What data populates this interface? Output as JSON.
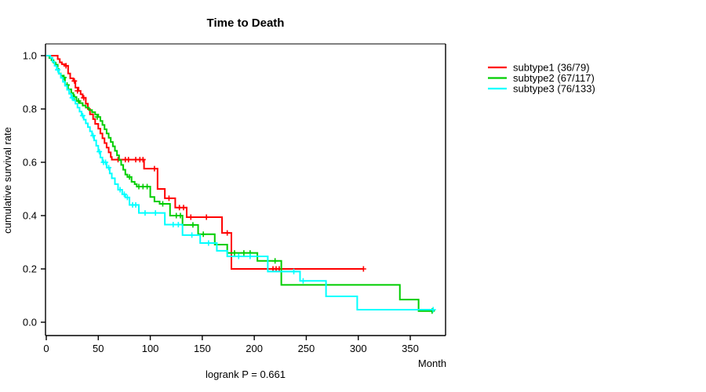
{
  "title": "Time to Death",
  "footer": "logrank P = 0.661",
  "axes": {
    "x_label": "Month",
    "y_label": "cumulative survival rate"
  },
  "legend": {
    "items": [
      {
        "label": "subtype1 (36/79)",
        "color": "#FF0000"
      },
      {
        "label": "subtype2 (67/117)",
        "color": "#00CD00"
      },
      {
        "label": "subtype3 (76/133)",
        "color": "#00FFFF"
      }
    ]
  },
  "chart_data": {
    "type": "line",
    "subtype": "kaplan-meier-step",
    "title": "Time to Death",
    "xlabel": "Month",
    "ylabel": "cumulative survival rate",
    "xlim": [
      0,
      384
    ],
    "ylim": [
      0.0,
      1.0
    ],
    "x_ticks": [
      0,
      50,
      100,
      150,
      200,
      250,
      300,
      350
    ],
    "y_ticks": [
      "1.0",
      "0.8",
      "0.6",
      "0.4",
      "0.2",
      "0.0"
    ],
    "grid": false,
    "legend_position": "right-outside",
    "annotation": "logrank P = 0.661",
    "series": [
      {
        "name": "subtype1 (36/79)",
        "color": "#FF0000",
        "end_time": 305,
        "steps": [
          [
            0,
            1.0
          ],
          [
            11,
            0.987
          ],
          [
            13,
            0.975
          ],
          [
            15,
            0.968
          ],
          [
            18,
            0.962
          ],
          [
            21,
            0.933
          ],
          [
            23,
            0.915
          ],
          [
            26,
            0.905
          ],
          [
            28,
            0.88
          ],
          [
            31,
            0.868
          ],
          [
            33,
            0.855
          ],
          [
            35,
            0.842
          ],
          [
            38,
            0.82
          ],
          [
            40,
            0.8
          ],
          [
            42,
            0.78
          ],
          [
            45,
            0.762
          ],
          [
            47,
            0.744
          ],
          [
            50,
            0.726
          ],
          [
            52,
            0.708
          ],
          [
            54,
            0.69
          ],
          [
            56,
            0.672
          ],
          [
            58,
            0.655
          ],
          [
            60,
            0.637
          ],
          [
            62,
            0.62
          ],
          [
            63,
            0.61
          ],
          [
            94,
            0.576
          ],
          [
            107,
            0.5
          ],
          [
            114,
            0.465
          ],
          [
            124,
            0.43
          ],
          [
            135,
            0.394
          ],
          [
            169,
            0.335
          ],
          [
            178,
            0.2
          ]
        ],
        "censors": [
          [
            19,
            0.962
          ],
          [
            27,
            0.905
          ],
          [
            30,
            0.868
          ],
          [
            36,
            0.842
          ],
          [
            69,
            0.61
          ],
          [
            76,
            0.61
          ],
          [
            79,
            0.61
          ],
          [
            86,
            0.61
          ],
          [
            90,
            0.61
          ],
          [
            93,
            0.61
          ],
          [
            104,
            0.576
          ],
          [
            118,
            0.465
          ],
          [
            128,
            0.43
          ],
          [
            132,
            0.43
          ],
          [
            139,
            0.394
          ],
          [
            154,
            0.394
          ],
          [
            174,
            0.335
          ],
          [
            218,
            0.2
          ],
          [
            221,
            0.2
          ],
          [
            224,
            0.2
          ],
          [
            305,
            0.2
          ]
        ]
      },
      {
        "name": "subtype2 (67/117)",
        "color": "#00CD00",
        "end_time": 371,
        "steps": [
          [
            0,
            1.0
          ],
          [
            3,
            0.991
          ],
          [
            5,
            0.983
          ],
          [
            7,
            0.974
          ],
          [
            9,
            0.966
          ],
          [
            11,
            0.95
          ],
          [
            12,
            0.933
          ],
          [
            14,
            0.925
          ],
          [
            16,
            0.918
          ],
          [
            18,
            0.89
          ],
          [
            21,
            0.874
          ],
          [
            24,
            0.86
          ],
          [
            26,
            0.845
          ],
          [
            29,
            0.83
          ],
          [
            32,
            0.822
          ],
          [
            35,
            0.813
          ],
          [
            38,
            0.805
          ],
          [
            41,
            0.796
          ],
          [
            44,
            0.788
          ],
          [
            47,
            0.779
          ],
          [
            50,
            0.77
          ],
          [
            52,
            0.755
          ],
          [
            54,
            0.74
          ],
          [
            56,
            0.724
          ],
          [
            58,
            0.708
          ],
          [
            60,
            0.692
          ],
          [
            62,
            0.676
          ],
          [
            64,
            0.66
          ],
          [
            66,
            0.643
          ],
          [
            68,
            0.626
          ],
          [
            70,
            0.608
          ],
          [
            72,
            0.59
          ],
          [
            74,
            0.572
          ],
          [
            76,
            0.554
          ],
          [
            78,
            0.545
          ],
          [
            82,
            0.527
          ],
          [
            85,
            0.518
          ],
          [
            87,
            0.509
          ],
          [
            100,
            0.47
          ],
          [
            104,
            0.453
          ],
          [
            109,
            0.444
          ],
          [
            119,
            0.4
          ],
          [
            131,
            0.365
          ],
          [
            146,
            0.33
          ],
          [
            162,
            0.291
          ],
          [
            174,
            0.26
          ],
          [
            203,
            0.23
          ],
          [
            226,
            0.14
          ],
          [
            340,
            0.085
          ],
          [
            358,
            0.042
          ]
        ],
        "censors": [
          [
            17,
            0.918
          ],
          [
            20,
            0.89
          ],
          [
            27,
            0.845
          ],
          [
            31,
            0.83
          ],
          [
            49,
            0.77
          ],
          [
            80,
            0.545
          ],
          [
            89,
            0.509
          ],
          [
            93,
            0.509
          ],
          [
            97,
            0.509
          ],
          [
            112,
            0.444
          ],
          [
            125,
            0.4
          ],
          [
            129,
            0.4
          ],
          [
            141,
            0.365
          ],
          [
            151,
            0.33
          ],
          [
            181,
            0.26
          ],
          [
            190,
            0.26
          ],
          [
            196,
            0.26
          ],
          [
            220,
            0.23
          ],
          [
            371,
            0.042
          ]
        ]
      },
      {
        "name": "subtype3 (76/133)",
        "color": "#00FFFF",
        "end_time": 372,
        "steps": [
          [
            0,
            1.0
          ],
          [
            4,
            0.992
          ],
          [
            6,
            0.977
          ],
          [
            8,
            0.962
          ],
          [
            10,
            0.947
          ],
          [
            12,
            0.932
          ],
          [
            14,
            0.917
          ],
          [
            16,
            0.902
          ],
          [
            18,
            0.887
          ],
          [
            20,
            0.872
          ],
          [
            22,
            0.857
          ],
          [
            24,
            0.842
          ],
          [
            26,
            0.832
          ],
          [
            28,
            0.82
          ],
          [
            30,
            0.805
          ],
          [
            32,
            0.79
          ],
          [
            34,
            0.775
          ],
          [
            36,
            0.76
          ],
          [
            38,
            0.746
          ],
          [
            40,
            0.732
          ],
          [
            42,
            0.716
          ],
          [
            44,
            0.7
          ],
          [
            46,
            0.682
          ],
          [
            48,
            0.662
          ],
          [
            50,
            0.64
          ],
          [
            52,
            0.618
          ],
          [
            54,
            0.6
          ],
          [
            58,
            0.58
          ],
          [
            61,
            0.558
          ],
          [
            63,
            0.54
          ],
          [
            66,
            0.518
          ],
          [
            69,
            0.497
          ],
          [
            73,
            0.48
          ],
          [
            76,
            0.468
          ],
          [
            80,
            0.44
          ],
          [
            89,
            0.41
          ],
          [
            114,
            0.366
          ],
          [
            131,
            0.327
          ],
          [
            148,
            0.297
          ],
          [
            164,
            0.268
          ],
          [
            174,
            0.247
          ],
          [
            213,
            0.19
          ],
          [
            244,
            0.155
          ],
          [
            269,
            0.097
          ],
          [
            299,
            0.047
          ]
        ],
        "censors": [
          [
            11,
            0.947
          ],
          [
            25,
            0.842
          ],
          [
            35,
            0.775
          ],
          [
            45,
            0.7
          ],
          [
            51,
            0.64
          ],
          [
            55,
            0.6
          ],
          [
            57,
            0.6
          ],
          [
            60,
            0.58
          ],
          [
            71,
            0.497
          ],
          [
            75,
            0.48
          ],
          [
            78,
            0.468
          ],
          [
            83,
            0.44
          ],
          [
            86,
            0.44
          ],
          [
            95,
            0.41
          ],
          [
            105,
            0.41
          ],
          [
            122,
            0.366
          ],
          [
            127,
            0.366
          ],
          [
            140,
            0.327
          ],
          [
            156,
            0.297
          ],
          [
            185,
            0.247
          ],
          [
            196,
            0.247
          ],
          [
            238,
            0.19
          ],
          [
            247,
            0.155
          ],
          [
            372,
            0.047
          ]
        ]
      }
    ]
  }
}
